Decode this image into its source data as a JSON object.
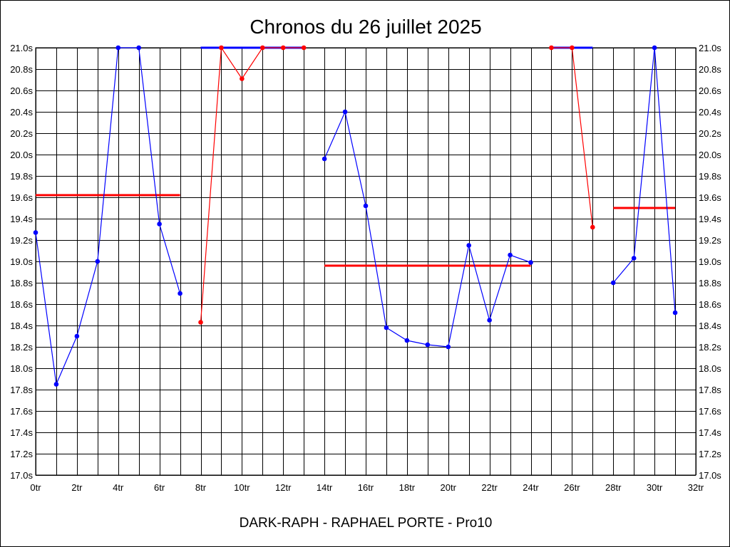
{
  "chart_data": {
    "type": "line",
    "title": "Chronos du 26 juillet 2025",
    "footer": "DARK-RAPH - RAPHAEL PORTE - Pro10",
    "x_ticks": [
      "0tr",
      "2tr",
      "4tr",
      "6tr",
      "8tr",
      "10tr",
      "12tr",
      "14tr",
      "16tr",
      "18tr",
      "20tr",
      "22tr",
      "24tr",
      "26tr",
      "28tr",
      "30tr",
      "32tr"
    ],
    "x_tick_values": [
      0,
      2,
      4,
      6,
      8,
      10,
      12,
      14,
      16,
      18,
      20,
      22,
      24,
      26,
      28,
      30,
      32
    ],
    "x_grid_step": 1,
    "xlim": [
      0,
      32
    ],
    "y_ticks": [
      "17.0s",
      "17.2s",
      "17.4s",
      "17.6s",
      "17.8s",
      "18.0s",
      "18.2s",
      "18.4s",
      "18.6s",
      "18.8s",
      "19.0s",
      "19.2s",
      "19.4s",
      "19.6s",
      "19.8s",
      "20.0s",
      "20.2s",
      "20.4s",
      "20.6s",
      "20.8s",
      "21.0s"
    ],
    "y_tick_values": [
      17.0,
      17.2,
      17.4,
      17.6,
      17.8,
      18.0,
      18.2,
      18.4,
      18.6,
      18.8,
      19.0,
      19.2,
      19.4,
      19.6,
      19.8,
      20.0,
      20.2,
      20.4,
      20.6,
      20.8,
      21.0
    ],
    "ylim": [
      17.0,
      21.0
    ],
    "grid": true,
    "y_axis_labels_both_sides": true,
    "series": [
      {
        "color": "#0000ff",
        "points": [
          [
            0,
            19.27
          ],
          [
            1,
            17.85
          ],
          [
            2,
            18.3
          ],
          [
            3,
            19.0
          ],
          [
            4,
            21.0
          ],
          [
            5,
            21.0
          ],
          [
            6,
            19.35
          ],
          [
            7,
            18.7
          ]
        ]
      },
      {
        "color": "#ff0000",
        "points": [
          [
            8,
            18.43
          ],
          [
            9,
            21.0
          ],
          [
            10,
            20.71
          ],
          [
            11,
            21.0
          ],
          [
            12,
            21.0
          ],
          [
            13,
            21.0
          ]
        ]
      },
      {
        "color": "#0000ff",
        "points": [
          [
            14,
            19.96
          ],
          [
            15,
            20.4
          ],
          [
            16,
            19.52
          ],
          [
            17,
            18.38
          ],
          [
            18,
            18.26
          ],
          [
            19,
            18.22
          ],
          [
            20,
            18.2
          ],
          [
            21,
            19.15
          ],
          [
            22,
            18.45
          ],
          [
            23,
            19.06
          ],
          [
            24,
            18.99
          ]
        ]
      },
      {
        "color": "#ff0000",
        "points": [
          [
            25,
            21.0
          ],
          [
            26,
            21.0
          ],
          [
            27,
            19.32
          ]
        ]
      },
      {
        "color": "#0000ff",
        "points": [
          [
            28,
            18.8
          ],
          [
            29,
            19.03
          ],
          [
            30,
            21.0
          ],
          [
            31,
            18.52
          ]
        ]
      }
    ],
    "reference_lines": [
      {
        "color": "#ff0000",
        "x": [
          0,
          7
        ],
        "y": 19.62
      },
      {
        "color": "#0000ff",
        "x": [
          8,
          13
        ],
        "y": 21.0
      },
      {
        "color": "#ff0000",
        "x": [
          14,
          24
        ],
        "y": 18.96
      },
      {
        "color": "#0000ff",
        "x": [
          25,
          27
        ],
        "y": 21.0
      },
      {
        "color": "#ff0000",
        "x": [
          28,
          31
        ],
        "y": 19.5
      }
    ]
  }
}
